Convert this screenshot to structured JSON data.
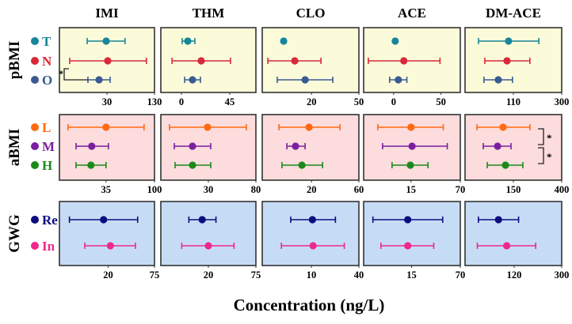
{
  "chart_data": {
    "type": "forest",
    "xlabel": "Concentration (ng/L)",
    "columns": [
      "IMI",
      "THM",
      "CLO",
      "ACE",
      "DM-ACE"
    ],
    "groups": [
      {
        "label": "pBMI",
        "background": "#fbfbd9",
        "series": [
          {
            "name": "T",
            "color": "#17869a"
          },
          {
            "name": "N",
            "color": "#d8283a"
          },
          {
            "name": "O",
            "color": "#3a5a92"
          }
        ],
        "panels": [
          {
            "axis": {
              "min": 0,
              "ticks": [
                30,
                130
              ]
            },
            "points": [
              [
                29.5,
                17.5,
                68
              ],
              [
                31.7,
                6.5,
                113
              ],
              [
                25,
                18,
                36.7
              ]
            ],
            "annotations": [
              {
                "text": "*",
                "between": [
                  "N",
                  "O"
                ],
                "side": "left"
              }
            ]
          },
          {
            "axis": {
              "ticks": [
                0,
                45
              ]
            },
            "points": [
              [
                5.9,
                0.7,
                12.5
              ],
              [
                18.4,
                -8.8,
                45.7
              ],
              [
                10.3,
                3,
                17.7
              ]
            ]
          },
          {
            "axis": {
              "min": 0,
              "ticks": [
                20,
                50
              ]
            },
            "points": [
              [
                8.7,
                8.7,
                8.7
              ],
              [
                13.2,
                2.3,
                26
              ],
              [
                17.4,
                6.1,
                33.5
              ]
            ]
          },
          {
            "axis": {
              "ticks": [
                0,
                50
              ]
            },
            "points": [
              [
                1.7,
                0.5,
                3
              ],
              [
                10.8,
                -26.7,
                49
              ],
              [
                5,
                -4.2,
                14
              ]
            ]
          },
          {
            "axis": {
              "min": 0,
              "ticks": [
                110,
                300
              ]
            },
            "points": [
              [
                99,
                30.6,
                210
              ],
              [
                95.5,
                45,
                175
              ],
              [
                75.7,
                43,
                108
              ]
            ]
          }
        ]
      },
      {
        "label": "aBMI",
        "background": "#fcdcdc",
        "series": [
          {
            "name": "L",
            "color": "#ff6a13"
          },
          {
            "name": "M",
            "color": "#7a1fa2"
          },
          {
            "name": "H",
            "color": "#1b8a1b"
          }
        ],
        "panels": [
          {
            "axis": {
              "min": 0,
              "ticks": [
                35,
                100
              ]
            },
            "points": [
              [
                35,
                6.5,
                86
              ],
              [
                24.3,
                12.5,
                38.2
              ],
              [
                23.7,
                12.5,
                35
              ]
            ]
          },
          {
            "axis": {
              "min": 0,
              "ticks": [
                30,
                80
              ]
            },
            "points": [
              [
                29.5,
                5.5,
                70
              ],
              [
                20,
                8.5,
                32.5
              ],
              [
                20,
                9,
                32.5
              ]
            ]
          },
          {
            "axis": {
              "min": 0,
              "ticks": [
                20,
                60
              ]
            },
            "points": [
              [
                19,
                6.8,
                44
              ],
              [
                13.5,
                10,
                17.4
              ],
              [
                16.1,
                8,
                29.3
              ]
            ]
          },
          {
            "axis": {
              "min": 0,
              "ticks": [
                15,
                70
              ]
            },
            "points": [
              [
                15,
                4.5,
                51
              ],
              [
                16.2,
                6,
                55.5
              ],
              [
                14.8,
                9,
                34
              ]
            ]
          },
          {
            "axis": {
              "min": 0,
              "ticks": [
                150,
                400
              ]
            },
            "points": [
              [
                118,
                37,
                236
              ],
              [
                101,
                56.5,
                142.6
              ],
              [
                125.5,
                69,
                199
              ]
            ],
            "annotations": [
              {
                "text": "*",
                "between": [
                  "L",
                  "M"
                ],
                "side": "right"
              },
              {
                "text": "*",
                "between": [
                  "M",
                  "H"
                ],
                "side": "right"
              }
            ]
          }
        ]
      },
      {
        "label": "GWG",
        "background": "#c6dcf5",
        "series": [
          {
            "name": "Re",
            "color": "#0c0c80"
          },
          {
            "name": "In",
            "color": "#f0288c"
          }
        ],
        "panels": [
          {
            "axis": {
              "min": 0,
              "ticks": [
                20,
                75
              ]
            },
            "points": [
              [
                18.1,
                4.1,
                55
              ],
              [
                22.6,
                10.4,
                52.4
              ]
            ]
          },
          {
            "axis": {
              "min": 0,
              "ticks": [
                20,
                75
              ]
            },
            "points": [
              [
                17.4,
                11.8,
                28.8
              ],
              [
                20,
                8.8,
                49.7
              ]
            ]
          },
          {
            "axis": {
              "min": 0,
              "ticks": [
                10,
                40
              ]
            },
            "points": [
              [
                10.7,
                5.8,
                25.2
              ],
              [
                11.1,
                3.9,
                30.8
              ]
            ]
          },
          {
            "axis": {
              "min": 0,
              "ticks": [
                15,
                70
              ]
            },
            "points": [
              [
                13.8,
                2.9,
                50.1
              ],
              [
                13.8,
                5.4,
                40
              ]
            ]
          },
          {
            "axis": {
              "min": 0,
              "ticks": [
                120,
                300
              ]
            },
            "points": [
              [
                81.7,
                32.6,
                136.8
              ],
              [
                101.8,
                30,
                201.6
              ]
            ]
          }
        ]
      }
    ]
  }
}
